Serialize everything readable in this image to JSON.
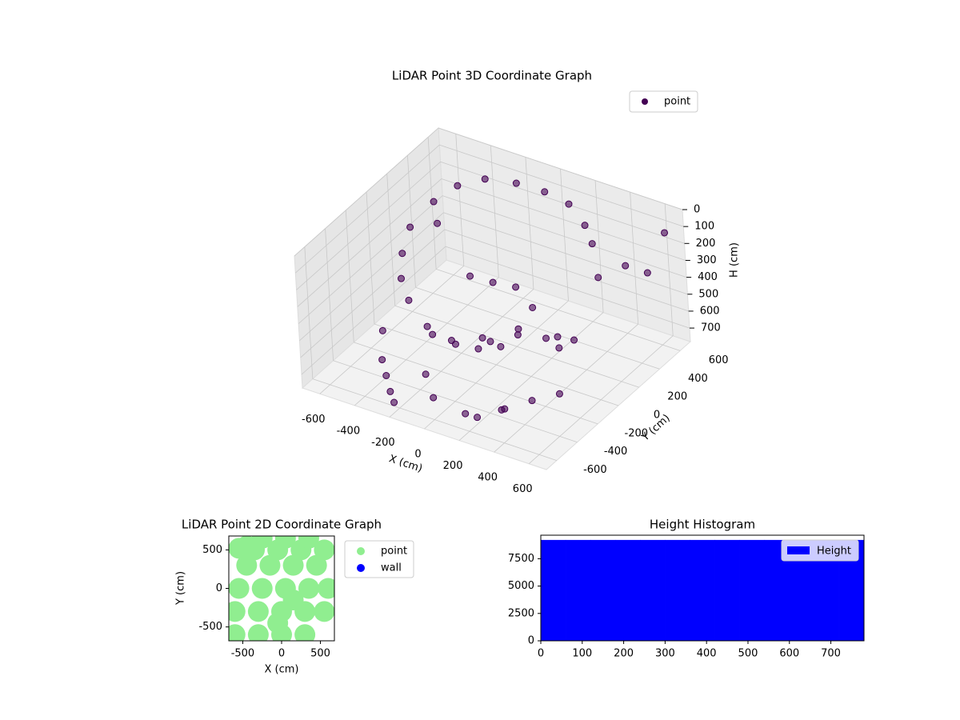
{
  "chart_data": [
    {
      "type": "scatter3d",
      "title": "LiDAR Point 3D Coordinate Graph",
      "xlabel": "X (cm)",
      "ylabel": "Y (cm)",
      "zlabel": "H (cm)",
      "xlim": [
        -700,
        700
      ],
      "ylim": [
        -700,
        700
      ],
      "zlim": [
        780,
        0
      ],
      "xticks": [
        -600,
        -400,
        -200,
        0,
        200,
        400,
        600
      ],
      "yticks": [
        -600,
        -400,
        -200,
        0,
        200,
        400,
        600
      ],
      "zticks": [
        0,
        100,
        200,
        300,
        400,
        500,
        600,
        700
      ],
      "legend": "upper right",
      "series": [
        {
          "name": "point",
          "color": "#440154",
          "x": [
            -500,
            -450,
            -350,
            -200,
            -50,
            100,
            250,
            350,
            -520,
            -480,
            -400,
            -300,
            -150,
            0,
            150,
            300,
            -300,
            -200,
            -100,
            0,
            -250,
            -150,
            -50,
            -350,
            -300,
            -250,
            -200,
            100,
            200,
            300,
            400,
            500,
            600,
            550,
            450,
            350,
            250,
            600,
            650,
            500,
            300,
            150,
            0,
            -100,
            -400,
            -550,
            200,
            400
          ],
          "y": [
            300,
            450,
            550,
            600,
            620,
            600,
            500,
            400,
            100,
            -50,
            -200,
            -300,
            -380,
            -400,
            -350,
            -250,
            -100,
            -50,
            0,
            50,
            200,
            250,
            300,
            -500,
            -550,
            -600,
            -650,
            -200,
            -100,
            0,
            100,
            200,
            300,
            -300,
            -400,
            -500,
            -600,
            500,
            600,
            -200,
            -450,
            -550,
            -600,
            -500,
            -400,
            400,
            50,
            -50
          ],
          "z": [
            150,
            120,
            100,
            100,
            110,
            120,
            140,
            160,
            200,
            260,
            300,
            340,
            400,
            420,
            380,
            330,
            650,
            700,
            720,
            700,
            450,
            480,
            500,
            600,
            650,
            700,
            720,
            500,
            480,
            520,
            550,
            200,
            150,
            600,
            620,
            650,
            680,
            300,
            100,
            400,
            700,
            720,
            650,
            600,
            500,
            350,
            400,
            450
          ]
        }
      ]
    },
    {
      "type": "scatter",
      "title": "LiDAR Point 2D Coordinate Graph",
      "xlabel": "X (cm)",
      "ylabel": "Y (cm)",
      "xlim": [
        -680,
        680
      ],
      "ylim": [
        -680,
        680
      ],
      "xticks": [
        -500,
        0,
        500
      ],
      "yticks": [
        -500,
        0,
        500
      ],
      "legend": "outside right",
      "series": [
        {
          "name": "point",
          "color": "#90ee90",
          "x": [
            -600,
            -300,
            0,
            300,
            -600,
            -300,
            0,
            300,
            550,
            -550,
            -250,
            50,
            350,
            600,
            -450,
            -150,
            150,
            450,
            -350,
            -50,
            250,
            550,
            -250,
            50,
            350,
            -550,
            -450,
            -350,
            -50,
            150
          ],
          "y": [
            -600,
            -600,
            -600,
            -600,
            -300,
            -300,
            -300,
            -300,
            -300,
            0,
            0,
            0,
            0,
            0,
            300,
            300,
            300,
            300,
            500,
            500,
            500,
            500,
            650,
            650,
            650,
            520,
            550,
            540,
            -450,
            -150
          ]
        },
        {
          "name": "wall",
          "color": "#0000ff",
          "x": [],
          "y": []
        }
      ]
    },
    {
      "type": "histogram",
      "title": "Height Histogram",
      "bins": [
        0,
        60,
        120,
        180,
        240,
        300,
        360,
        420,
        480,
        540,
        600,
        660,
        720,
        780
      ],
      "series": [
        {
          "name": "Height",
          "color": "#0000ff",
          "values": [
            9200,
            9200,
            9200,
            9200,
            9200,
            9200,
            9200,
            9200,
            9200,
            9200,
            9200,
            9200,
            9200
          ]
        }
      ],
      "xlim": [
        0,
        780
      ],
      "ylim": [
        0,
        9650
      ],
      "xticks": [
        0,
        100,
        200,
        300,
        400,
        500,
        600,
        700
      ],
      "yticks": [
        0,
        2500,
        5000,
        7500
      ],
      "legend": "upper right"
    }
  ]
}
